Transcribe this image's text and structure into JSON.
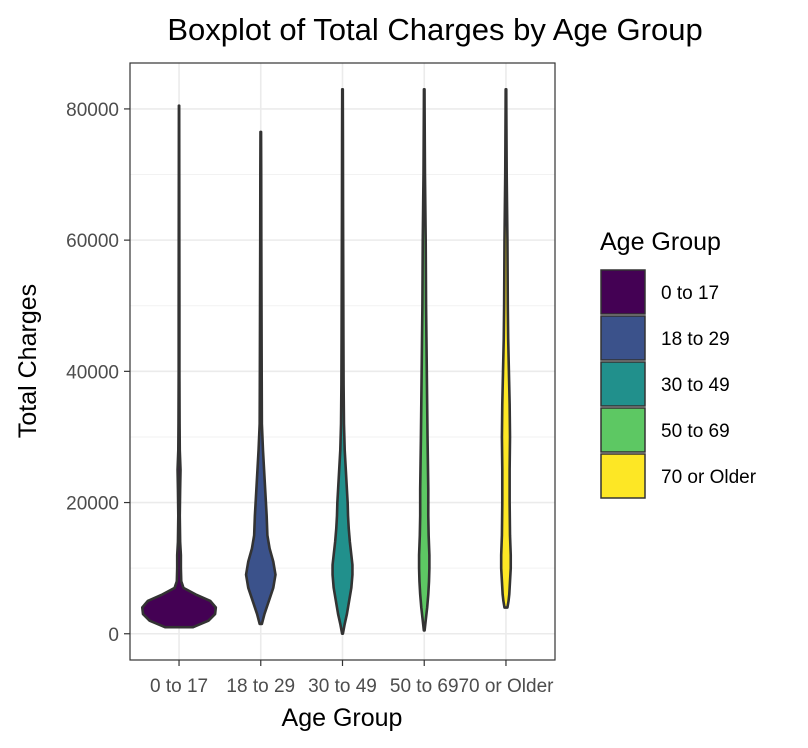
{
  "chart_data": {
    "type": "violin",
    "title": "Boxplot of Total Charges by Age Group",
    "xlabel": "Age Group",
    "ylabel": "Total Charges",
    "ylim": [
      -4000,
      87000
    ],
    "yticks": [
      0,
      20000,
      40000,
      60000,
      80000
    ],
    "grid": true,
    "categories": [
      "0 to 17",
      "18 to 29",
      "30 to 49",
      "50 to 69",
      "70 or Older"
    ],
    "legend": {
      "title": "Age Group",
      "position": "right",
      "entries": [
        "0 to 17",
        "18 to 29",
        "30 to 49",
        "50 to 69",
        "70 or Older"
      ]
    },
    "colors": [
      "#440154",
      "#3b528b",
      "#21908c",
      "#5dc863",
      "#fde725"
    ],
    "series": [
      {
        "name": "0 to 17",
        "min": 1000,
        "max": 80500,
        "density": [
          [
            1000,
            0.38
          ],
          [
            2000,
            0.8
          ],
          [
            3000,
            0.98
          ],
          [
            4000,
            1
          ],
          [
            5000,
            0.85
          ],
          [
            6000,
            0.45
          ],
          [
            7000,
            0.12
          ],
          [
            8000,
            0.06
          ],
          [
            10000,
            0.05
          ],
          [
            12000,
            0.05
          ],
          [
            14000,
            0.03
          ],
          [
            18000,
            0.02
          ],
          [
            22000,
            0.03
          ],
          [
            25000,
            0.04
          ],
          [
            28000,
            0.02
          ],
          [
            32000,
            0.015
          ],
          [
            40000,
            0.01
          ],
          [
            50000,
            0.01
          ],
          [
            60000,
            0.008
          ],
          [
            70000,
            0.006
          ],
          [
            80500,
            0.004
          ]
        ]
      },
      {
        "name": "18 to 29",
        "min": 1500,
        "max": 76500,
        "density": [
          [
            1500,
            0.03
          ],
          [
            3000,
            0.1
          ],
          [
            5000,
            0.22
          ],
          [
            7000,
            0.34
          ],
          [
            9000,
            0.4
          ],
          [
            11000,
            0.34
          ],
          [
            13000,
            0.24
          ],
          [
            15000,
            0.18
          ],
          [
            18000,
            0.16
          ],
          [
            20000,
            0.14
          ],
          [
            22000,
            0.12
          ],
          [
            25000,
            0.09
          ],
          [
            28000,
            0.06
          ],
          [
            32000,
            0.03
          ],
          [
            40000,
            0.025
          ],
          [
            50000,
            0.02
          ],
          [
            60000,
            0.015
          ],
          [
            70000,
            0.012
          ],
          [
            76500,
            0.008
          ]
        ]
      },
      {
        "name": "30 to 49",
        "min": 0,
        "max": 83000,
        "density": [
          [
            0,
            0.01
          ],
          [
            1500,
            0.06
          ],
          [
            3000,
            0.12
          ],
          [
            5000,
            0.18
          ],
          [
            7000,
            0.24
          ],
          [
            9000,
            0.27
          ],
          [
            10500,
            0.27
          ],
          [
            12000,
            0.24
          ],
          [
            14000,
            0.2
          ],
          [
            16000,
            0.17
          ],
          [
            18000,
            0.15
          ],
          [
            20000,
            0.14
          ],
          [
            22000,
            0.12
          ],
          [
            25000,
            0.09
          ],
          [
            28000,
            0.06
          ],
          [
            32000,
            0.04
          ],
          [
            38000,
            0.03
          ],
          [
            45000,
            0.025
          ],
          [
            55000,
            0.02
          ],
          [
            65000,
            0.015
          ],
          [
            75000,
            0.012
          ],
          [
            83000,
            0.008
          ]
        ]
      },
      {
        "name": "50 to 69",
        "min": 500,
        "max": 83000,
        "density": [
          [
            500,
            0.01
          ],
          [
            2000,
            0.04
          ],
          [
            4000,
            0.08
          ],
          [
            6000,
            0.11
          ],
          [
            8000,
            0.13
          ],
          [
            10000,
            0.14
          ],
          [
            12000,
            0.14
          ],
          [
            15000,
            0.12
          ],
          [
            18000,
            0.11
          ],
          [
            22000,
            0.11
          ],
          [
            26000,
            0.1
          ],
          [
            30000,
            0.09
          ],
          [
            35000,
            0.08
          ],
          [
            40000,
            0.07
          ],
          [
            45000,
            0.06
          ],
          [
            50000,
            0.05
          ],
          [
            55000,
            0.045
          ],
          [
            60000,
            0.04
          ],
          [
            65000,
            0.03
          ],
          [
            70000,
            0.02
          ],
          [
            75000,
            0.015
          ],
          [
            80000,
            0.01
          ],
          [
            83000,
            0.008
          ]
        ]
      },
      {
        "name": "70 or Older",
        "min": 4000,
        "max": 83000,
        "density": [
          [
            4000,
            0.04
          ],
          [
            5000,
            0.07
          ],
          [
            6000,
            0.09
          ],
          [
            8000,
            0.11
          ],
          [
            10000,
            0.13
          ],
          [
            12000,
            0.13
          ],
          [
            15000,
            0.11
          ],
          [
            20000,
            0.1
          ],
          [
            25000,
            0.1
          ],
          [
            30000,
            0.11
          ],
          [
            35000,
            0.1
          ],
          [
            40000,
            0.08
          ],
          [
            45000,
            0.06
          ],
          [
            50000,
            0.05
          ],
          [
            55000,
            0.045
          ],
          [
            60000,
            0.04
          ],
          [
            65000,
            0.03
          ],
          [
            70000,
            0.02
          ],
          [
            75000,
            0.015
          ],
          [
            80000,
            0.01
          ],
          [
            83000,
            0.008
          ]
        ]
      }
    ]
  }
}
